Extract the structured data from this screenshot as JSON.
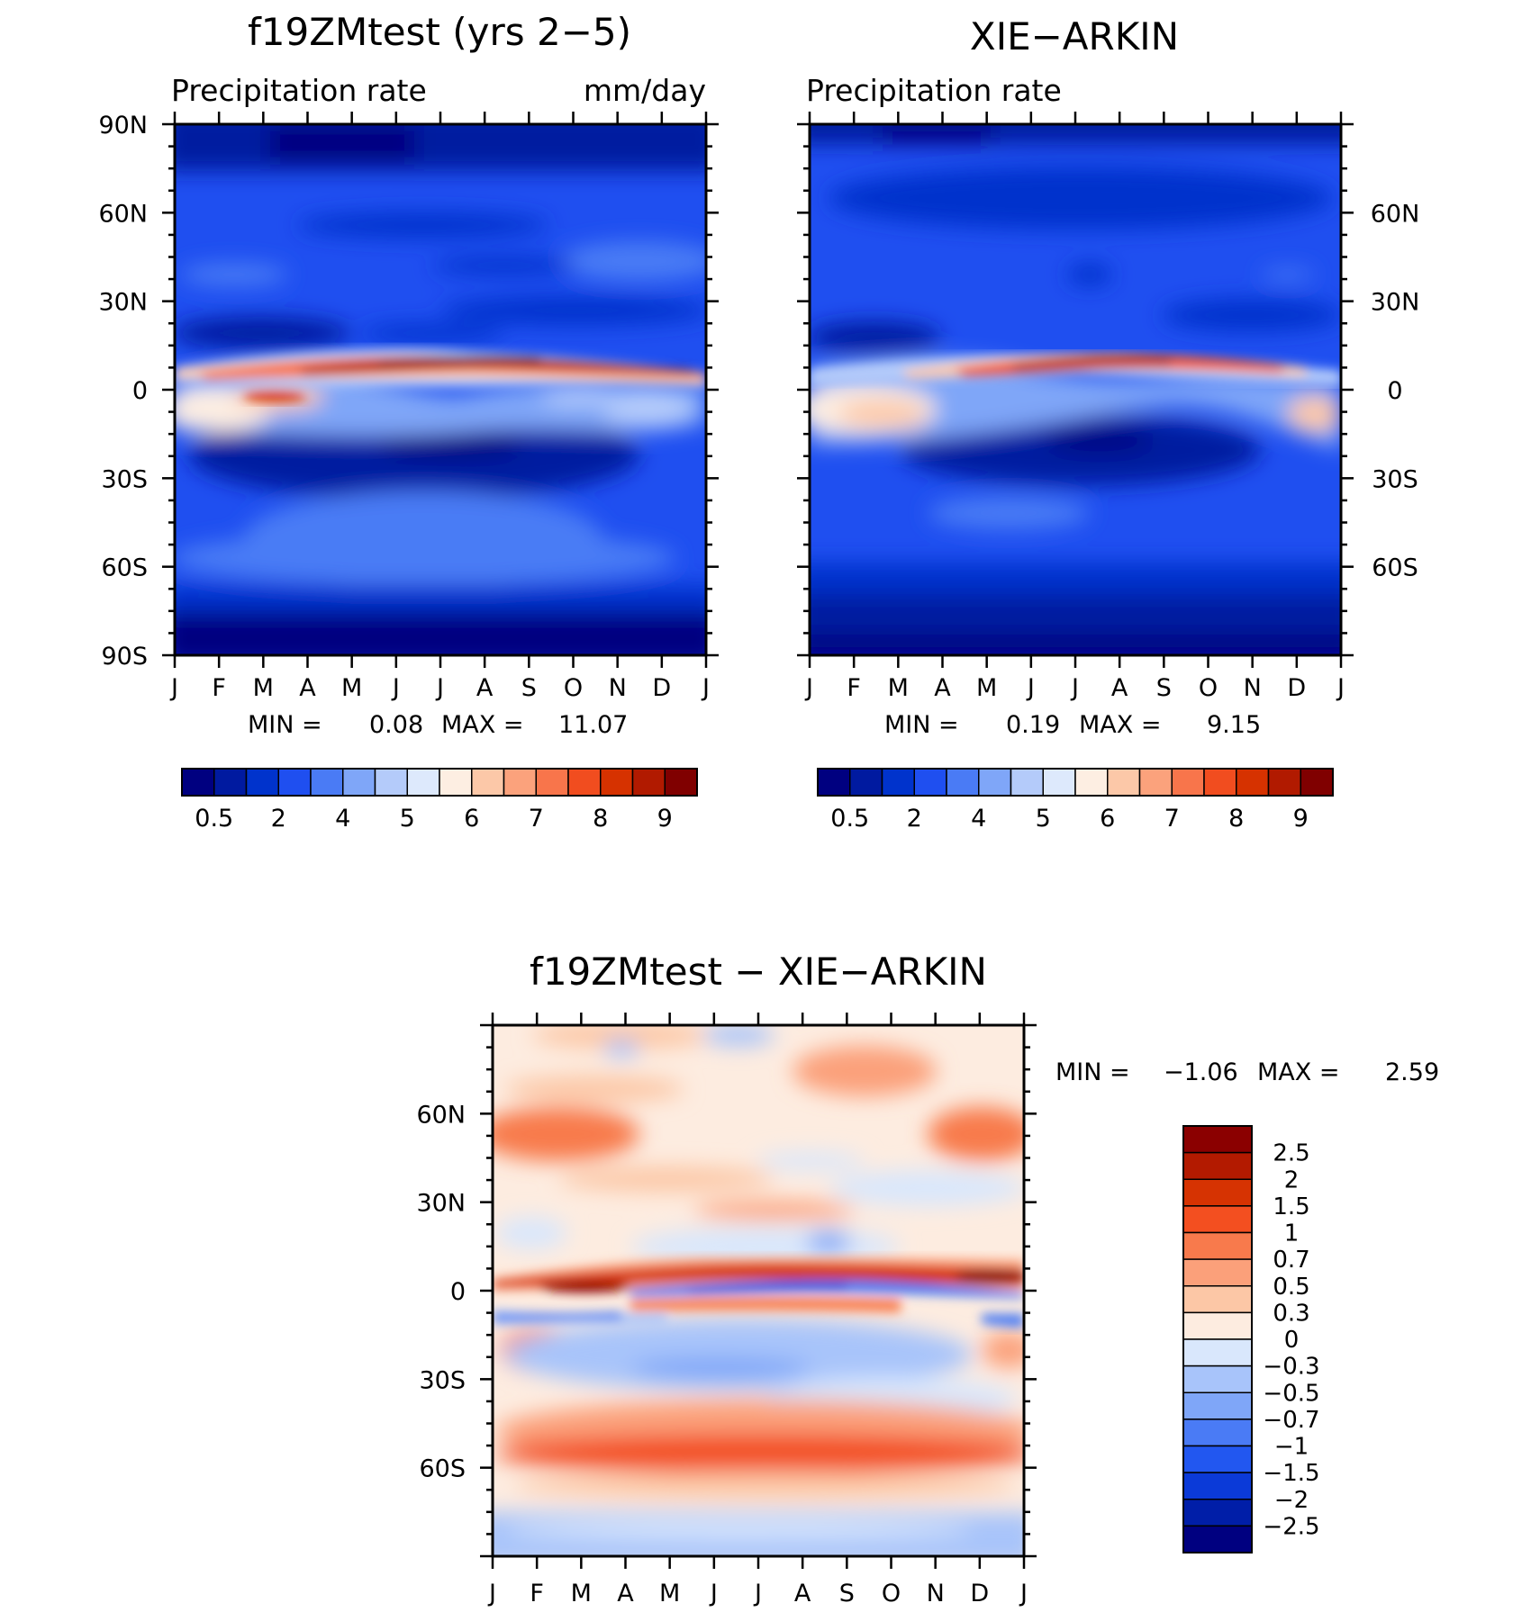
{
  "colors": {
    "seq": [
      "#000080",
      "#001aa0",
      "#0033cc",
      "#1f4ff0",
      "#4a7bf5",
      "#7fa6f8",
      "#b4cbfa",
      "#dde9fc",
      "#fdeee2",
      "#fcc8a8",
      "#fba27c",
      "#f8754b",
      "#f14d1f",
      "#d63200",
      "#b11a00",
      "#800000"
    ],
    "diff": [
      "#000080",
      "#001ea8",
      "#0b3ad8",
      "#2257f0",
      "#4a7bf5",
      "#7fa6f8",
      "#a8c4fa",
      "#d9e7fc",
      "#fdece0",
      "#fcc7a6",
      "#fba07a",
      "#f87a4c",
      "#f34f20",
      "#d63302",
      "#b31a00",
      "#8b0000"
    ]
  },
  "chart_data": [
    {
      "type": "heatmap",
      "title": "f19ZMtest (yrs 2−5)",
      "subtitle_left": "Precipitation rate",
      "subtitle_right": "mm/day",
      "x_ticks": [
        "J",
        "F",
        "M",
        "A",
        "M",
        "J",
        "J",
        "A",
        "S",
        "O",
        "N",
        "D",
        "J"
      ],
      "y_ticks": [
        "90N",
        "60N",
        "30N",
        "0",
        "30S",
        "60S",
        "90S"
      ],
      "stats": {
        "min_label": "MIN =",
        "min": "0.08",
        "max_label": "MAX =",
        "max": "11.07"
      },
      "colorbar": {
        "orientation": "horizontal",
        "labels": [
          "0.5",
          "2",
          "4",
          "5",
          "6",
          "7",
          "8",
          "9"
        ]
      }
    },
    {
      "type": "heatmap",
      "title": "XIE−ARKIN",
      "subtitle_left": "Precipitation rate",
      "subtitle_right": "",
      "x_ticks": [
        "J",
        "F",
        "M",
        "A",
        "M",
        "J",
        "J",
        "A",
        "S",
        "O",
        "N",
        "D",
        "J"
      ],
      "y_ticks": [
        "60N",
        "30N",
        "0",
        "30S",
        "60S"
      ],
      "stats": {
        "min_label": "MIN =",
        "min": "0.19",
        "max_label": "MAX =",
        "max": "9.15"
      },
      "colorbar": {
        "orientation": "horizontal",
        "labels": [
          "0.5",
          "2",
          "4",
          "5",
          "6",
          "7",
          "8",
          "9"
        ]
      }
    },
    {
      "type": "heatmap",
      "title": "f19ZMtest − XIE−ARKIN",
      "x_ticks": [
        "J",
        "F",
        "M",
        "A",
        "M",
        "J",
        "J",
        "A",
        "S",
        "O",
        "N",
        "D",
        "J"
      ],
      "y_ticks": [
        "60N",
        "30N",
        "0",
        "30S",
        "60S"
      ],
      "stats": {
        "min_label": "MIN =",
        "min": "−1.06",
        "max_label": "MAX =",
        "max": "2.59"
      },
      "colorbar": {
        "orientation": "vertical",
        "labels": [
          "2.5",
          "2",
          "1.5",
          "1",
          "0.7",
          "0.5",
          "0.3",
          "0",
          "−0.3",
          "−0.5",
          "−0.7",
          "−1",
          "−1.5",
          "−2",
          "−2.5"
        ]
      }
    }
  ]
}
